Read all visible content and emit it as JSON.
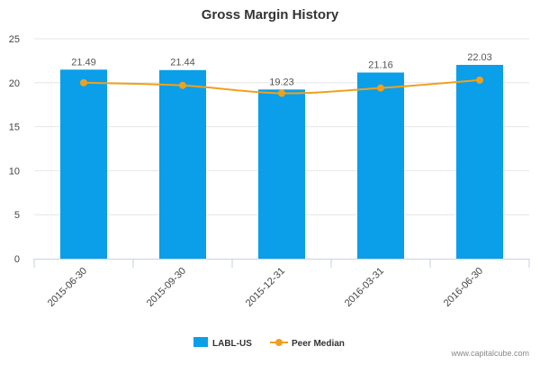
{
  "chart_data": {
    "type": "bar",
    "title": "Gross Margin History",
    "categories": [
      "2015-06-30",
      "2015-09-30",
      "2015-12-31",
      "2016-03-31",
      "2016-06-30"
    ],
    "series": [
      {
        "name": "LABL-US",
        "type": "bar",
        "color": "#0a9fe8",
        "values": [
          21.49,
          21.44,
          19.23,
          21.16,
          22.03
        ]
      },
      {
        "name": "Peer Median",
        "type": "line",
        "color": "#f0a01e",
        "values": [
          20.0,
          19.7,
          18.8,
          19.4,
          20.3
        ]
      }
    ],
    "ylim": [
      0,
      25
    ],
    "yticks": [
      0,
      5,
      10,
      15,
      20,
      25
    ],
    "grid": true,
    "legend": "bottom-center",
    "data_labels": [
      "21.49",
      "21.44",
      "19.23",
      "21.16",
      "22.03"
    ]
  },
  "watermark": "www.capitalcube.com"
}
